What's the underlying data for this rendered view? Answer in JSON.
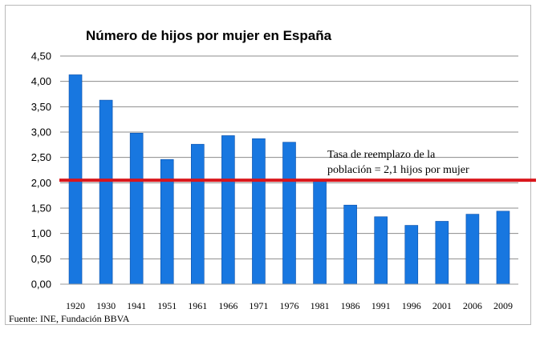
{
  "chart_data": {
    "type": "bar",
    "title": "Número de hijos por mujer en España",
    "categories": [
      "1920",
      "1930",
      "1941",
      "1951",
      "1961",
      "1966",
      "1971",
      "1976",
      "1981",
      "1986",
      "1991",
      "1996",
      "2001",
      "2006",
      "2009"
    ],
    "values": [
      4.13,
      3.63,
      2.98,
      2.46,
      2.76,
      2.93,
      2.87,
      2.8,
      2.04,
      1.56,
      1.33,
      1.16,
      1.24,
      1.38,
      1.44
    ],
    "ylim": [
      0,
      4.5
    ],
    "yticks": [
      "0,00",
      "0,50",
      "1,00",
      "1,50",
      "2,00",
      "2,50",
      "3,00",
      "3,50",
      "4,00",
      "4,50"
    ],
    "ytick_values": [
      0,
      0.5,
      1,
      1.5,
      2,
      2.5,
      3,
      3.5,
      4,
      4.5
    ],
    "grid": true,
    "bar_color": "#1877e0",
    "reference_line": {
      "value": 2.05,
      "color": "#d9161c",
      "label_line1": "Tasa de reemplazo de la",
      "label_line2": "población = 2,1 hijos por mujer"
    },
    "source": "Fuente: INE, Fundación BBVA",
    "xlabel": "",
    "ylabel": ""
  }
}
